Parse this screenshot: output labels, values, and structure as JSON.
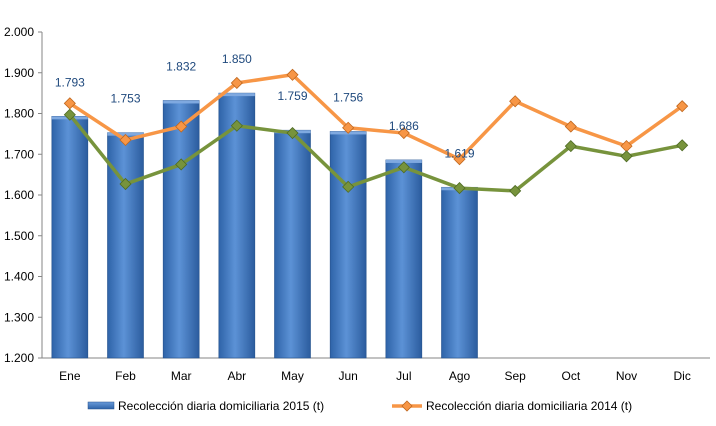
{
  "chart_data": {
    "type": "bar",
    "categories": [
      "Ene",
      "Feb",
      "Mar",
      "Abr",
      "May",
      "Jun",
      "Jul",
      "Ago",
      "Sep",
      "Oct",
      "Nov",
      "Dic"
    ],
    "ylim": [
      1200,
      2000
    ],
    "y_ticks": [
      "1.200",
      "1.300",
      "1.400",
      "1.500",
      "1.600",
      "1.700",
      "1.800",
      "1.900",
      "2.000"
    ],
    "grid": false,
    "legend_position": "bottom",
    "series": [
      {
        "name": "Recolección diaria domiciliaria 2015 (t)",
        "type": "bar",
        "color": "#4F81BD",
        "values": [
          1793,
          1753,
          1832,
          1850,
          1759,
          1756,
          1686,
          1619,
          null,
          null,
          null,
          null
        ],
        "labels": [
          "1.793",
          "1.753",
          "1.832",
          "1.850",
          "1.759",
          "1.756",
          "1.686",
          "1.619",
          "",
          "",
          "",
          ""
        ]
      },
      {
        "name": "Recolección diaria domiciliaria 2014 (t)",
        "type": "line",
        "color": "#F79646",
        "values": [
          1825,
          1735,
          1768,
          1875,
          1895,
          1765,
          1752,
          1688,
          1830,
          1768,
          1720,
          1818
        ]
      },
      {
        "name": "",
        "type": "line",
        "color": "#77933C",
        "values": [
          1797,
          1627,
          1675,
          1770,
          1752,
          1620,
          1668,
          1617,
          1610,
          1720,
          1695,
          1722
        ]
      }
    ]
  }
}
